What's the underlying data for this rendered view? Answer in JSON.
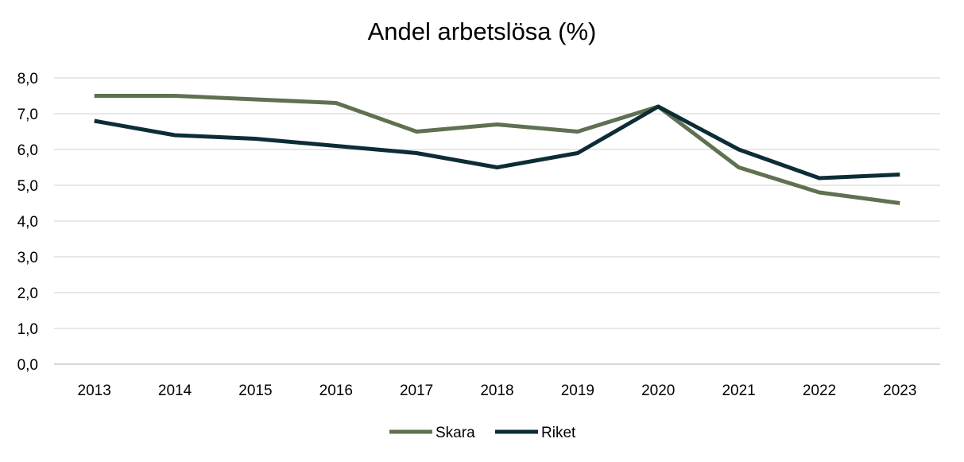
{
  "chart_data": {
    "type": "line",
    "title": "Andel arbetslösa (%)",
    "xlabel": "",
    "ylabel": "",
    "categories": [
      "2013",
      "2014",
      "2015",
      "2016",
      "2017",
      "2018",
      "2019",
      "2020",
      "2021",
      "2022",
      "2023"
    ],
    "y_ticks": [
      "0,0",
      "1,0",
      "2,0",
      "3,0",
      "4,0",
      "5,0",
      "6,0",
      "7,0",
      "8,0"
    ],
    "ylim": [
      0,
      8
    ],
    "grid": true,
    "legend_position": "bottom",
    "series": [
      {
        "name": "Skara",
        "color": "#5f7150",
        "values": [
          7.5,
          7.5,
          7.4,
          7.3,
          6.5,
          6.7,
          6.5,
          7.2,
          5.5,
          4.8,
          4.5
        ]
      },
      {
        "name": "Riket",
        "color": "#0d2d36",
        "values": [
          6.8,
          6.4,
          6.3,
          6.1,
          5.9,
          5.5,
          5.9,
          7.2,
          6.0,
          5.2,
          5.3
        ]
      }
    ]
  }
}
